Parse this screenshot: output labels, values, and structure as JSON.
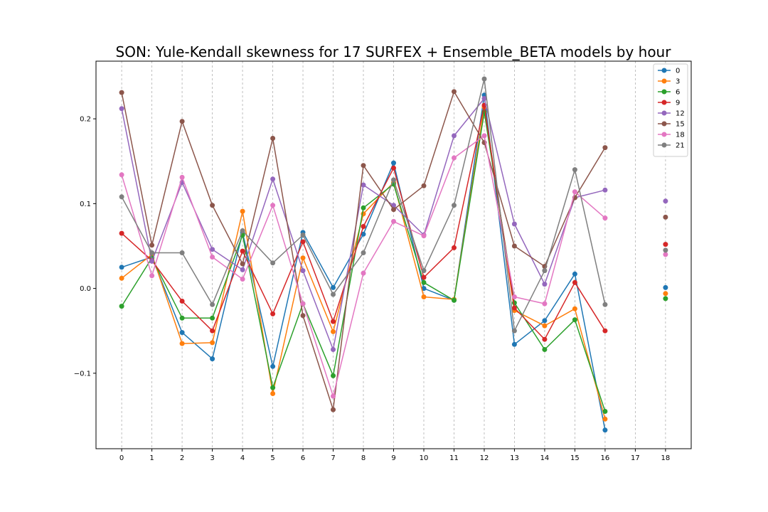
{
  "chart_data": {
    "type": "line",
    "title": "SON: Yule-Kendall skewness for 17 SURFEX + Ensemble_BETA models by hour",
    "xlabel": "",
    "ylabel": "",
    "x": [
      0,
      1,
      2,
      3,
      4,
      5,
      6,
      7,
      8,
      9,
      10,
      11,
      12,
      13,
      14,
      15,
      16,
      17,
      18
    ],
    "xticks": [
      "0",
      "1",
      "2",
      "3",
      "4",
      "5",
      "6",
      "7",
      "8",
      "9",
      "10",
      "11",
      "12",
      "13",
      "14",
      "15",
      "16",
      "17",
      "18"
    ],
    "yticks": [
      {
        "value": -0.1,
        "label": "−0.1"
      },
      {
        "value": 0.0,
        "label": "0.0"
      },
      {
        "value": 0.1,
        "label": "0.1"
      },
      {
        "value": 0.2,
        "label": "0.2"
      }
    ],
    "xlim": [
      -0.85,
      18.85
    ],
    "ylim": [
      -0.189,
      0.268
    ],
    "grid": "vertical-dashed",
    "legend_position": "top-right",
    "series": [
      {
        "name": "0",
        "color": "#1f77b4",
        "values": [
          0.025,
          0.037,
          -0.052,
          -0.083,
          0.066,
          -0.092,
          0.066,
          0.001,
          0.064,
          0.148,
          0.0,
          -0.014,
          0.228,
          -0.066,
          -0.038,
          0.017,
          -0.167,
          null,
          0.001
        ]
      },
      {
        "name": "3",
        "color": "#ff7f0e",
        "values": [
          0.012,
          0.04,
          -0.065,
          -0.064,
          0.091,
          -0.124,
          0.036,
          -0.051,
          0.088,
          0.125,
          -0.01,
          -0.013,
          0.214,
          -0.026,
          -0.044,
          -0.024,
          -0.154,
          null,
          -0.006
        ]
      },
      {
        "name": "6",
        "color": "#2ca02c",
        "values": [
          -0.021,
          0.036,
          -0.035,
          -0.035,
          0.063,
          -0.117,
          -0.018,
          -0.103,
          0.095,
          0.123,
          0.007,
          -0.014,
          0.208,
          -0.017,
          -0.072,
          -0.037,
          -0.145,
          null,
          -0.012
        ]
      },
      {
        "name": "9",
        "color": "#d62728",
        "values": [
          0.065,
          0.033,
          -0.015,
          -0.05,
          0.044,
          -0.03,
          0.055,
          -0.039,
          0.073,
          0.142,
          0.013,
          0.048,
          0.216,
          -0.023,
          -0.06,
          0.007,
          -0.05,
          null,
          0.052
        ]
      },
      {
        "name": "12",
        "color": "#9467bd",
        "values": [
          0.212,
          0.032,
          0.125,
          0.046,
          0.022,
          0.129,
          0.021,
          -0.072,
          0.122,
          0.098,
          0.063,
          0.18,
          0.224,
          0.076,
          0.005,
          0.107,
          0.116,
          null,
          0.103
        ]
      },
      {
        "name": "15",
        "color": "#8c564b",
        "values": [
          0.231,
          0.051,
          0.197,
          0.098,
          0.029,
          0.177,
          -0.032,
          -0.143,
          0.145,
          0.093,
          0.121,
          0.232,
          0.172,
          0.05,
          0.026,
          0.107,
          0.166,
          null,
          0.084
        ]
      },
      {
        "name": "18",
        "color": "#e377c2",
        "values": [
          0.134,
          0.015,
          0.131,
          0.037,
          0.011,
          0.098,
          -0.018,
          -0.127,
          0.018,
          0.079,
          0.062,
          0.154,
          0.18,
          -0.01,
          -0.018,
          0.114,
          0.083,
          null,
          0.04
        ]
      },
      {
        "name": "21",
        "color": "#7f7f7f",
        "values": [
          0.108,
          0.042,
          0.042,
          -0.019,
          0.068,
          0.03,
          0.063,
          -0.007,
          0.042,
          0.128,
          0.021,
          0.098,
          0.247,
          -0.05,
          0.021,
          0.14,
          -0.019,
          null,
          0.045
        ]
      }
    ]
  }
}
